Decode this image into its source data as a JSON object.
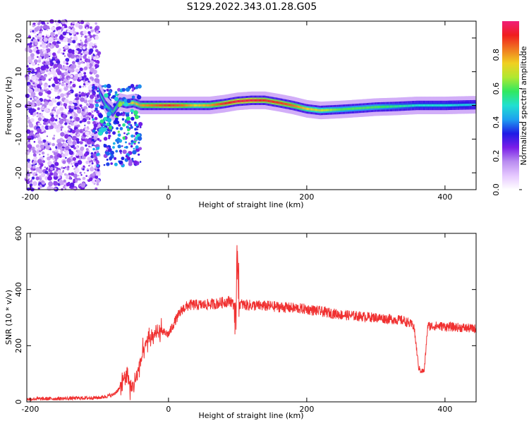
{
  "title": "S129.2022.343.01.28.G05",
  "chart_data": [
    {
      "type": "heatmap",
      "title": "S129.2022.343.01.28.G05",
      "xlabel": "Height of straight line (km)",
      "ylabel": "Frequency (Hz)",
      "xlim": [
        -205,
        445
      ],
      "ylim": [
        -25,
        25
      ],
      "xticks": [
        "-200",
        "0",
        "200",
        "400"
      ],
      "yticks": [
        "-20",
        "-10",
        "0",
        "10",
        "20"
      ],
      "colorbar": {
        "label": "Normalized spectral amplitude",
        "range": [
          0,
          1
        ],
        "ticks": [
          "0.0",
          "0.2",
          "0.4",
          "0.6",
          "0.8"
        ],
        "colormap": [
          "#ffffff",
          "#e6c8ff",
          "#b98cf0",
          "#7a1ee8",
          "#1f1ae6",
          "#1ea0f0",
          "#20e0d0",
          "#30e860",
          "#b0e830",
          "#f0d020",
          "#f07820",
          "#f01e1e",
          "#f01e78"
        ]
      },
      "ridge": {
        "x": [
          -100,
          -90,
          -80,
          -70,
          -60,
          -50,
          -40,
          -20,
          0,
          20,
          40,
          60,
          80,
          100,
          120,
          140,
          160,
          180,
          200,
          220,
          250,
          280,
          300,
          330,
          360,
          400,
          445
        ],
        "y": [
          4,
          0,
          -2,
          1,
          0.5,
          0.8,
          0,
          0,
          0,
          0,
          0,
          0,
          0.5,
          1.2,
          1.5,
          1.5,
          0.8,
          0,
          -1,
          -1.5,
          -1.2,
          -0.8,
          -0.5,
          -0.3,
          0,
          0,
          0.2
        ],
        "amplitude": [
          0.5,
          0.55,
          0.55,
          0.6,
          0.7,
          0.75,
          0.8,
          0.85,
          0.9,
          0.85,
          0.75,
          0.8,
          0.9,
          0.95,
          0.95,
          0.9,
          0.9,
          0.85,
          0.75,
          0.7,
          0.6,
          0.6,
          0.6,
          0.55,
          0.5,
          0.5,
          0.45
        ]
      },
      "noise_region_x": [
        -205,
        -100
      ]
    },
    {
      "type": "line",
      "xlabel": "Height of straight line (km)",
      "ylabel": "SNR (10 * v/v)",
      "xlim": [
        -205,
        445
      ],
      "ylim": [
        0,
        600
      ],
      "xticks": [
        "-200",
        "0",
        "200",
        "400"
      ],
      "yticks": [
        "0",
        "200",
        "400",
        "600"
      ],
      "color": "#f03030",
      "series": [
        {
          "x": [
            -205,
            -150,
            -100,
            -80,
            -70,
            -60,
            -55,
            -50,
            -40,
            -30,
            -20,
            -10,
            0,
            10,
            20,
            30,
            50,
            70,
            90,
            98,
            100,
            102,
            110,
            150,
            200,
            250,
            300,
            340,
            355,
            362,
            366,
            370,
            375,
            390,
            420,
            445
          ],
          "y": [
            10,
            12,
            15,
            25,
            50,
            110,
            40,
            60,
            150,
            220,
            240,
            250,
            240,
            290,
            330,
            345,
            345,
            350,
            360,
            330,
            560,
            350,
            345,
            340,
            330,
            310,
            300,
            290,
            270,
            120,
            110,
            110,
            270,
            270,
            265,
            260
          ]
        }
      ]
    }
  ]
}
